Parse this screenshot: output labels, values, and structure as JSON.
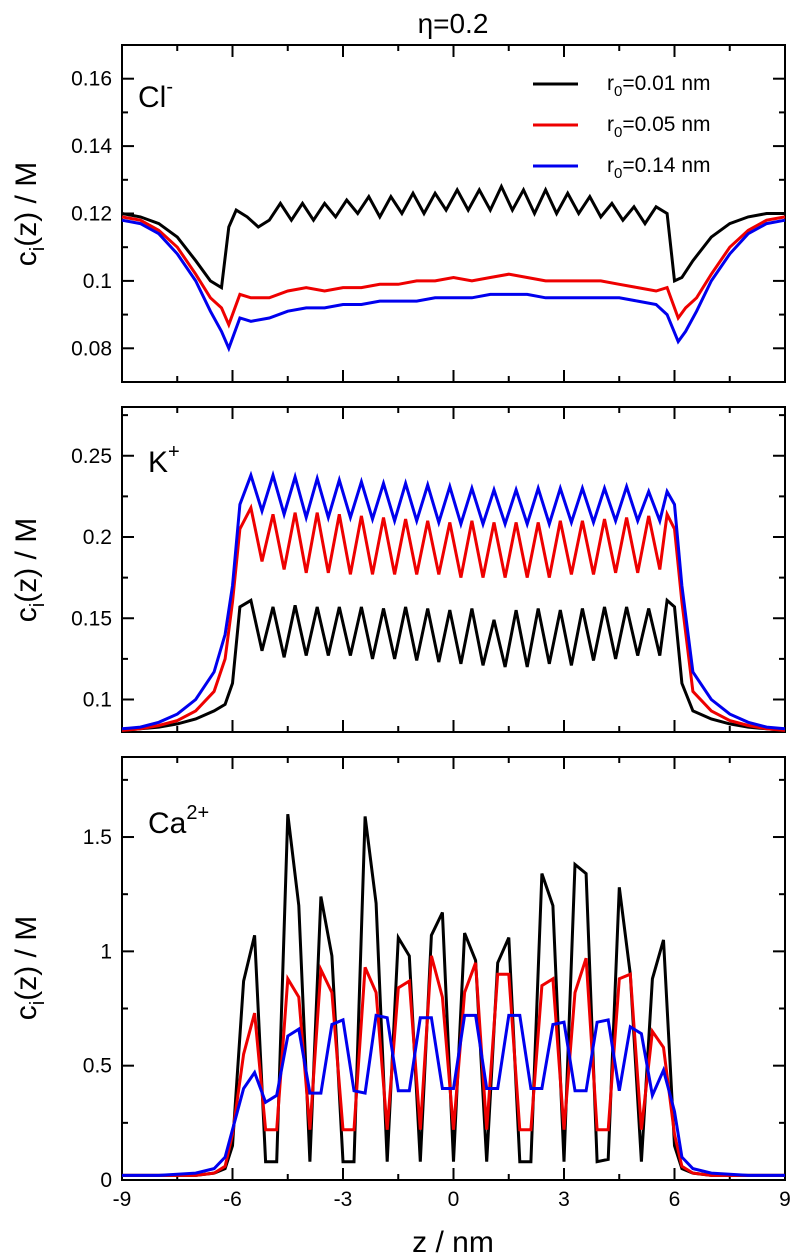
{
  "figure": {
    "title": "η=0.2",
    "xlabel": "z / nm",
    "ylabel": "c",
    "ylabel_sub": "i",
    "ylabel_rest": "(z) / M"
  },
  "legend": [
    {
      "label_pre": "r",
      "label_sub": "0",
      "label_post": "=0.01 nm",
      "color": "#000000"
    },
    {
      "label_pre": "r",
      "label_sub": "0",
      "label_post": "=0.05 nm",
      "color": "#ee0000"
    },
    {
      "label_pre": "r",
      "label_sub": "0",
      "label_post": "=0.14 nm",
      "color": "#0000ee"
    }
  ],
  "chart_data": [
    {
      "type": "line",
      "ion": "Cl",
      "ion_sup": "-",
      "xlim": [
        -9,
        9
      ],
      "ylim": [
        0.07,
        0.17
      ],
      "xticks": [
        -9,
        -6,
        -3,
        0,
        3,
        6,
        9
      ],
      "yticks": [
        0.08,
        0.1,
        0.12,
        0.14,
        0.16
      ],
      "ytick_labels": [
        "0.08",
        "0.1",
        "0.12",
        "0.14",
        "0.16"
      ],
      "xlabel": "",
      "series": [
        {
          "name": "r0=0.01 nm",
          "color": "#000000",
          "x": [
            -9,
            -8.5,
            -8,
            -7.5,
            -7,
            -6.6,
            -6.3,
            -6.1,
            -5.9,
            -5.6,
            -5.3,
            -5.0,
            -4.7,
            -4.4,
            -4.1,
            -3.8,
            -3.5,
            -3.2,
            -2.9,
            -2.6,
            -2.3,
            -2.0,
            -1.7,
            -1.4,
            -1.1,
            -0.8,
            -0.5,
            -0.2,
            0.1,
            0.4,
            0.7,
            1.0,
            1.3,
            1.6,
            1.9,
            2.2,
            2.5,
            2.8,
            3.1,
            3.4,
            3.7,
            4.0,
            4.3,
            4.6,
            4.9,
            5.2,
            5.5,
            5.8,
            6.0,
            6.2,
            6.5,
            7.0,
            7.5,
            8.0,
            8.5,
            9.0
          ],
          "y": [
            0.12,
            0.119,
            0.117,
            0.113,
            0.106,
            0.1,
            0.098,
            0.116,
            0.121,
            0.119,
            0.116,
            0.118,
            0.123,
            0.118,
            0.123,
            0.118,
            0.123,
            0.119,
            0.124,
            0.12,
            0.125,
            0.119,
            0.125,
            0.12,
            0.126,
            0.12,
            0.126,
            0.121,
            0.127,
            0.121,
            0.127,
            0.121,
            0.128,
            0.121,
            0.127,
            0.12,
            0.127,
            0.12,
            0.126,
            0.12,
            0.125,
            0.119,
            0.123,
            0.118,
            0.122,
            0.117,
            0.122,
            0.12,
            0.1,
            0.101,
            0.106,
            0.113,
            0.117,
            0.119,
            0.12,
            0.12
          ]
        },
        {
          "name": "r0=0.05 nm",
          "color": "#ee0000",
          "x": [
            -9,
            -8.5,
            -8,
            -7.5,
            -7,
            -6.6,
            -6.3,
            -6.1,
            -5.8,
            -5.5,
            -5.0,
            -4.5,
            -4.0,
            -3.5,
            -3.0,
            -2.5,
            -2.0,
            -1.5,
            -1.0,
            -0.5,
            0,
            0.5,
            1.0,
            1.5,
            2.0,
            2.5,
            3.0,
            3.5,
            4.0,
            4.5,
            5.0,
            5.5,
            5.8,
            6.1,
            6.3,
            6.6,
            7.0,
            7.5,
            8.0,
            8.5,
            9.0
          ],
          "y": [
            0.119,
            0.118,
            0.115,
            0.11,
            0.102,
            0.095,
            0.092,
            0.087,
            0.096,
            0.095,
            0.095,
            0.097,
            0.098,
            0.097,
            0.098,
            0.098,
            0.099,
            0.099,
            0.1,
            0.1,
            0.101,
            0.1,
            0.101,
            0.102,
            0.101,
            0.1,
            0.1,
            0.1,
            0.1,
            0.099,
            0.098,
            0.097,
            0.098,
            0.089,
            0.092,
            0.095,
            0.102,
            0.11,
            0.115,
            0.118,
            0.119
          ]
        },
        {
          "name": "r0=0.14 nm",
          "color": "#0000ee",
          "x": [
            -9,
            -8.5,
            -8,
            -7.5,
            -7,
            -6.6,
            -6.3,
            -6.1,
            -5.8,
            -5.5,
            -5.0,
            -4.5,
            -4.0,
            -3.5,
            -3.0,
            -2.5,
            -2.0,
            -1.5,
            -1.0,
            -0.5,
            0,
            0.5,
            1.0,
            1.5,
            2.0,
            2.5,
            3.0,
            3.5,
            4.0,
            4.5,
            5.0,
            5.5,
            5.8,
            6.1,
            6.3,
            6.6,
            7.0,
            7.5,
            8.0,
            8.5,
            9.0
          ],
          "y": [
            0.118,
            0.117,
            0.114,
            0.108,
            0.1,
            0.091,
            0.085,
            0.08,
            0.089,
            0.088,
            0.089,
            0.091,
            0.092,
            0.092,
            0.093,
            0.093,
            0.094,
            0.094,
            0.094,
            0.095,
            0.095,
            0.095,
            0.096,
            0.096,
            0.096,
            0.095,
            0.095,
            0.095,
            0.095,
            0.095,
            0.094,
            0.093,
            0.09,
            0.082,
            0.085,
            0.091,
            0.1,
            0.108,
            0.114,
            0.117,
            0.118
          ]
        }
      ]
    },
    {
      "type": "line",
      "ion": "K",
      "ion_sup": "+",
      "xlim": [
        -9,
        9
      ],
      "ylim": [
        0.08,
        0.28
      ],
      "xticks": [
        -9,
        -6,
        -3,
        0,
        3,
        6,
        9
      ],
      "yticks": [
        0.1,
        0.15,
        0.2,
        0.25
      ],
      "ytick_labels": [
        "0.1",
        "0.15",
        "0.2",
        "0.25"
      ],
      "xlabel": "",
      "series": [
        {
          "name": "r0=0.01 nm",
          "color": "#000000",
          "x": [
            -9,
            -8.5,
            -8,
            -7.5,
            -7,
            -6.5,
            -6.2,
            -6.0,
            -5.8,
            -5.5,
            -5.2,
            -4.9,
            -4.6,
            -4.3,
            -4.0,
            -3.7,
            -3.4,
            -3.1,
            -2.8,
            -2.5,
            -2.2,
            -1.9,
            -1.6,
            -1.3,
            -1.0,
            -0.7,
            -0.4,
            -0.1,
            0.2,
            0.5,
            0.8,
            1.1,
            1.4,
            1.7,
            2.0,
            2.3,
            2.6,
            2.9,
            3.2,
            3.5,
            3.8,
            4.1,
            4.4,
            4.7,
            5.0,
            5.3,
            5.6,
            5.8,
            6.0,
            6.2,
            6.5,
            7.0,
            7.5,
            8.0,
            8.5,
            9.0
          ],
          "y": [
            0.081,
            0.082,
            0.083,
            0.085,
            0.088,
            0.093,
            0.097,
            0.11,
            0.157,
            0.161,
            0.13,
            0.157,
            0.126,
            0.158,
            0.127,
            0.157,
            0.127,
            0.157,
            0.127,
            0.157,
            0.125,
            0.156,
            0.125,
            0.157,
            0.124,
            0.156,
            0.123,
            0.155,
            0.122,
            0.156,
            0.121,
            0.149,
            0.12,
            0.155,
            0.12,
            0.156,
            0.122,
            0.155,
            0.121,
            0.156,
            0.124,
            0.157,
            0.125,
            0.157,
            0.127,
            0.156,
            0.127,
            0.161,
            0.157,
            0.11,
            0.093,
            0.088,
            0.085,
            0.083,
            0.082,
            0.081
          ]
        },
        {
          "name": "r0=0.05 nm",
          "color": "#ee0000",
          "x": [
            -9,
            -8.5,
            -8,
            -7.5,
            -7,
            -6.5,
            -6.2,
            -6.0,
            -5.8,
            -5.5,
            -5.2,
            -4.9,
            -4.6,
            -4.3,
            -4.0,
            -3.7,
            -3.4,
            -3.1,
            -2.8,
            -2.5,
            -2.2,
            -1.9,
            -1.6,
            -1.3,
            -1.0,
            -0.7,
            -0.4,
            -0.1,
            0.2,
            0.5,
            0.8,
            1.1,
            1.4,
            1.7,
            2.0,
            2.3,
            2.6,
            2.9,
            3.2,
            3.5,
            3.8,
            4.1,
            4.4,
            4.7,
            5.0,
            5.3,
            5.6,
            5.8,
            6.0,
            6.2,
            6.5,
            7.0,
            7.5,
            8.0,
            8.5,
            9.0
          ],
          "y": [
            0.081,
            0.082,
            0.084,
            0.087,
            0.093,
            0.105,
            0.125,
            0.16,
            0.205,
            0.218,
            0.185,
            0.214,
            0.18,
            0.215,
            0.178,
            0.215,
            0.178,
            0.214,
            0.177,
            0.213,
            0.177,
            0.212,
            0.177,
            0.211,
            0.177,
            0.21,
            0.177,
            0.209,
            0.175,
            0.21,
            0.175,
            0.209,
            0.175,
            0.209,
            0.175,
            0.209,
            0.175,
            0.21,
            0.177,
            0.21,
            0.177,
            0.211,
            0.178,
            0.212,
            0.178,
            0.213,
            0.18,
            0.214,
            0.205,
            0.16,
            0.105,
            0.093,
            0.087,
            0.084,
            0.082,
            0.081
          ]
        },
        {
          "name": "r0=0.14 nm",
          "color": "#0000ee",
          "x": [
            -9,
            -8.5,
            -8,
            -7.5,
            -7,
            -6.5,
            -6.2,
            -6.0,
            -5.8,
            -5.5,
            -5.2,
            -4.9,
            -4.6,
            -4.3,
            -4.0,
            -3.7,
            -3.4,
            -3.1,
            -2.8,
            -2.5,
            -2.2,
            -1.9,
            -1.6,
            -1.3,
            -1.0,
            -0.7,
            -0.4,
            -0.1,
            0.2,
            0.5,
            0.8,
            1.1,
            1.4,
            1.7,
            2.0,
            2.3,
            2.6,
            2.9,
            3.2,
            3.5,
            3.8,
            4.1,
            4.4,
            4.7,
            5.0,
            5.3,
            5.6,
            5.8,
            6.0,
            6.2,
            6.5,
            7.0,
            7.5,
            8.0,
            8.5,
            9.0
          ],
          "y": [
            0.082,
            0.083,
            0.086,
            0.091,
            0.1,
            0.117,
            0.14,
            0.17,
            0.22,
            0.238,
            0.216,
            0.238,
            0.214,
            0.237,
            0.212,
            0.236,
            0.212,
            0.235,
            0.212,
            0.234,
            0.211,
            0.233,
            0.21,
            0.233,
            0.21,
            0.232,
            0.209,
            0.231,
            0.208,
            0.23,
            0.208,
            0.229,
            0.208,
            0.229,
            0.208,
            0.23,
            0.208,
            0.23,
            0.209,
            0.23,
            0.209,
            0.23,
            0.21,
            0.231,
            0.21,
            0.228,
            0.21,
            0.228,
            0.22,
            0.17,
            0.117,
            0.1,
            0.091,
            0.086,
            0.083,
            0.082
          ]
        }
      ]
    },
    {
      "type": "line",
      "ion": "Ca",
      "ion_sup": "2+",
      "xlim": [
        -9,
        9
      ],
      "ylim": [
        0,
        1.85
      ],
      "xticks": [
        -9,
        -6,
        -3,
        0,
        3,
        6,
        9
      ],
      "xtick_labels": [
        "-9",
        "-6",
        "-3",
        "0",
        "3",
        "6",
        "9"
      ],
      "yticks": [
        0,
        0.5,
        1,
        1.5
      ],
      "ytick_labels": [
        "0",
        "0.5",
        "1",
        "1.5"
      ],
      "xlabel": "z / nm",
      "series": [
        {
          "name": "r0=0.01 nm",
          "color": "#000000",
          "x": [
            -9,
            -8,
            -7,
            -6.5,
            -6.2,
            -6.0,
            -5.7,
            -5.4,
            -5.1,
            -4.8,
            -4.5,
            -4.2,
            -3.9,
            -3.6,
            -3.3,
            -3.0,
            -2.7,
            -2.4,
            -2.1,
            -1.8,
            -1.5,
            -1.2,
            -0.9,
            -0.6,
            -0.3,
            0,
            0.3,
            0.6,
            0.9,
            1.2,
            1.5,
            1.8,
            2.1,
            2.4,
            2.7,
            3.0,
            3.3,
            3.6,
            3.9,
            4.2,
            4.5,
            4.8,
            5.1,
            5.4,
            5.7,
            6.0,
            6.2,
            6.5,
            7,
            8,
            9
          ],
          "y": [
            0.02,
            0.02,
            0.02,
            0.03,
            0.05,
            0.15,
            0.87,
            1.07,
            0.08,
            0.08,
            1.6,
            1.2,
            0.08,
            1.24,
            0.98,
            0.08,
            0.08,
            1.59,
            1.21,
            0.08,
            1.06,
            0.98,
            0.08,
            1.07,
            1.17,
            0.08,
            1.08,
            0.96,
            0.08,
            0.95,
            1.06,
            0.08,
            0.08,
            1.34,
            1.2,
            0.08,
            1.38,
            1.34,
            0.08,
            0.09,
            1.28,
            0.9,
            0.08,
            0.88,
            1.05,
            0.15,
            0.05,
            0.03,
            0.02,
            0.02,
            0.02
          ]
        },
        {
          "name": "r0=0.05 nm",
          "color": "#ee0000",
          "x": [
            -9,
            -8,
            -7,
            -6.5,
            -6.2,
            -6.0,
            -5.7,
            -5.4,
            -5.1,
            -4.8,
            -4.5,
            -4.2,
            -3.9,
            -3.6,
            -3.3,
            -3.0,
            -2.7,
            -2.4,
            -2.1,
            -1.8,
            -1.5,
            -1.2,
            -0.9,
            -0.6,
            -0.3,
            0,
            0.3,
            0.6,
            0.9,
            1.2,
            1.5,
            1.8,
            2.1,
            2.4,
            2.7,
            3.0,
            3.3,
            3.6,
            3.9,
            4.2,
            4.5,
            4.8,
            5.1,
            5.4,
            5.7,
            6.0,
            6.2,
            6.5,
            7,
            8,
            9
          ],
          "y": [
            0.02,
            0.02,
            0.02,
            0.03,
            0.06,
            0.2,
            0.55,
            0.73,
            0.22,
            0.22,
            0.88,
            0.8,
            0.22,
            0.92,
            0.82,
            0.22,
            0.22,
            0.93,
            0.82,
            0.22,
            0.84,
            0.87,
            0.22,
            0.98,
            0.8,
            0.22,
            0.82,
            0.95,
            0.22,
            0.9,
            0.9,
            0.22,
            0.22,
            0.85,
            0.88,
            0.22,
            0.82,
            0.97,
            0.22,
            0.22,
            0.88,
            0.9,
            0.22,
            0.65,
            0.58,
            0.2,
            0.06,
            0.03,
            0.02,
            0.02,
            0.02
          ]
        },
        {
          "name": "r0=0.14 nm",
          "color": "#0000ee",
          "x": [
            -9,
            -8,
            -7,
            -6.5,
            -6.2,
            -6.0,
            -5.7,
            -5.4,
            -5.1,
            -4.8,
            -4.5,
            -4.2,
            -3.9,
            -3.6,
            -3.3,
            -3.0,
            -2.7,
            -2.4,
            -2.1,
            -1.8,
            -1.5,
            -1.2,
            -0.9,
            -0.6,
            -0.3,
            0,
            0.3,
            0.6,
            0.9,
            1.2,
            1.5,
            1.8,
            2.1,
            2.4,
            2.7,
            3.0,
            3.3,
            3.6,
            3.9,
            4.2,
            4.5,
            4.8,
            5.1,
            5.4,
            5.7,
            6.0,
            6.2,
            6.5,
            7,
            8,
            9
          ],
          "y": [
            0.02,
            0.02,
            0.03,
            0.05,
            0.1,
            0.22,
            0.4,
            0.47,
            0.34,
            0.37,
            0.63,
            0.66,
            0.38,
            0.38,
            0.68,
            0.7,
            0.39,
            0.38,
            0.72,
            0.71,
            0.39,
            0.39,
            0.71,
            0.71,
            0.4,
            0.4,
            0.72,
            0.72,
            0.4,
            0.4,
            0.72,
            0.72,
            0.4,
            0.4,
            0.68,
            0.69,
            0.39,
            0.39,
            0.69,
            0.7,
            0.39,
            0.67,
            0.64,
            0.37,
            0.48,
            0.3,
            0.1,
            0.05,
            0.03,
            0.02,
            0.02
          ]
        }
      ]
    }
  ]
}
